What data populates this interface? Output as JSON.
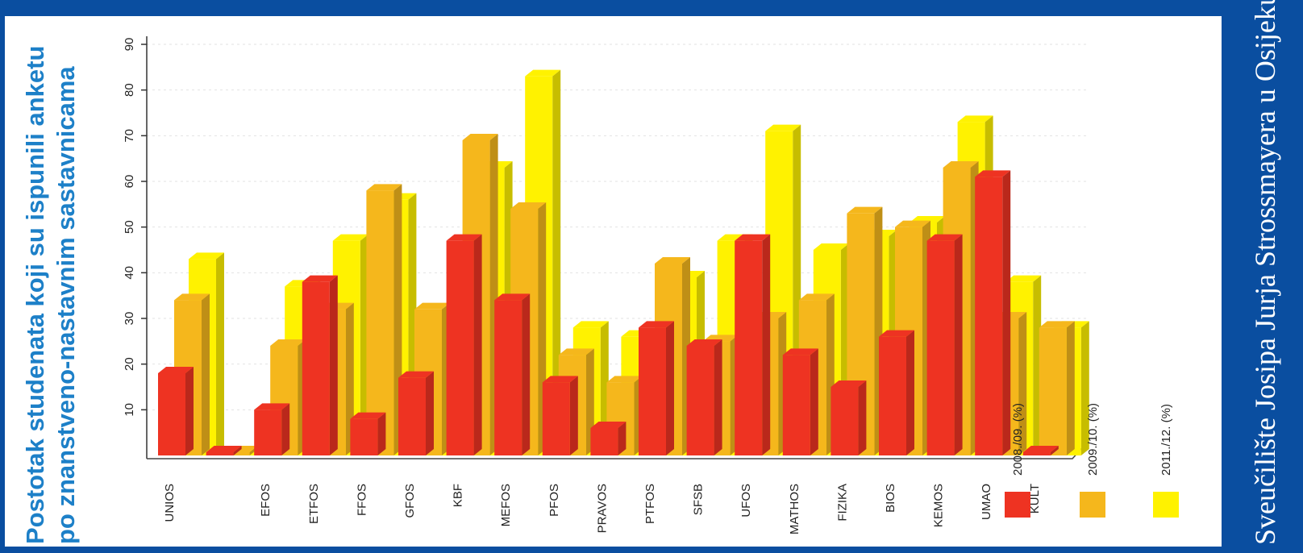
{
  "title": {
    "line1": "Postotak studenata koji su ispunili anketu",
    "line2": "po znanstveno-nastavnim sastavnicama"
  },
  "side_label": "Sveučilište Josipa Jurja Strossmayera u Osijeku",
  "colors": {
    "frame": "#0a4ea0",
    "title": "#1d80c8",
    "s2008": "#ee3322",
    "s2009": "#f5b71c",
    "s2011": "#fff200"
  },
  "chart_data": {
    "type": "bar",
    "title": "Postotak studenata koji su ispunili anketu po znanstveno-nastavnim sastavnicama",
    "categories": [
      "UNIOS",
      "",
      "EFOS",
      "ETFOS",
      "FFOS",
      "GFOS",
      "KBF",
      "MEFOS",
      "PFOS",
      "PRAVOS",
      "PTFOS",
      "SFSB",
      "UFOS",
      "MATHOS",
      "FIZIKA",
      "BIOS",
      "KEMOS",
      "UMAO",
      "KULT"
    ],
    "series": [
      {
        "name": "2008./09. (%)",
        "values": [
          18,
          0,
          10,
          38,
          8,
          17,
          47,
          34,
          16,
          6,
          28,
          24,
          47,
          22,
          15,
          26,
          47,
          61,
          0
        ]
      },
      {
        "name": "2009./10. (%)",
        "values": [
          34,
          0,
          24,
          32,
          58,
          32,
          69,
          54,
          22,
          16,
          42,
          25,
          30,
          34,
          53,
          50,
          63,
          30,
          28
        ]
      },
      {
        "name": "2011./12. (%)",
        "values": [
          43,
          0,
          37,
          47,
          56,
          29,
          63,
          83,
          28,
          26,
          39,
          47,
          71,
          45,
          48,
          51,
          73,
          38,
          28
        ]
      }
    ],
    "yticks": [
      "10",
      "20",
      "30",
      "40",
      "50",
      "60",
      "70",
      "80",
      "90"
    ],
    "ylim": [
      0,
      90
    ],
    "grid": true,
    "legend": "right"
  }
}
